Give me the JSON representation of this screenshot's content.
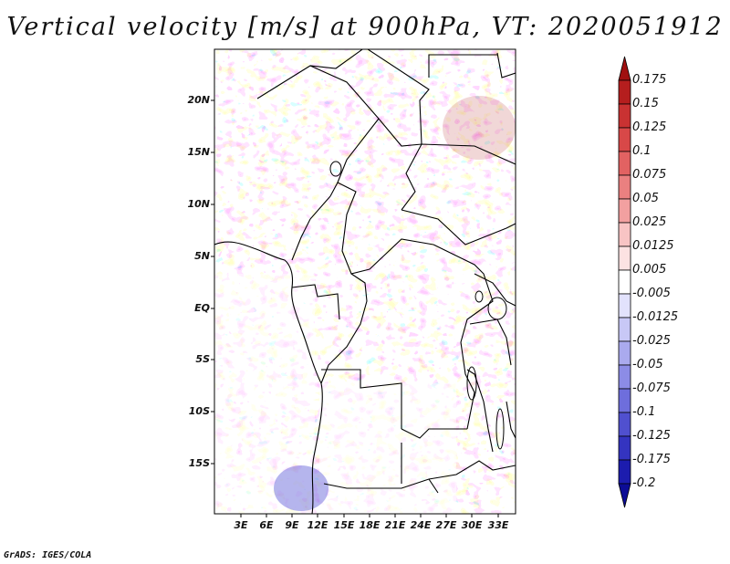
{
  "title": "Vertical velocity [m/s] at 900hPa, VT: 2020051912",
  "credit": "GrADS: IGES/COLA",
  "map": {
    "variable": "Vertical velocity",
    "units": "m/s",
    "level": "900hPa",
    "valid_time": "2020051912",
    "lat_labels": [
      "20N",
      "15N",
      "10N",
      "5N",
      "EQ",
      "5S",
      "10S",
      "15S"
    ],
    "lon_labels": [
      "3E",
      "6E",
      "9E",
      "12E",
      "15E",
      "18E",
      "21E",
      "24E",
      "27E",
      "30E",
      "33E"
    ]
  },
  "colorbar": {
    "labels": [
      "0.175",
      "0.15",
      "0.125",
      "0.1",
      "0.075",
      "0.05",
      "0.025",
      "0.0125",
      "0.005",
      "-0.005",
      "-0.0125",
      "-0.025",
      "-0.05",
      "-0.075",
      "-0.1",
      "-0.125",
      "-0.175",
      "-0.2"
    ],
    "colors": [
      "#a01010",
      "#b51e1e",
      "#c93232",
      "#d84848",
      "#e26262",
      "#ea8080",
      "#f2a0a0",
      "#f8c4c4",
      "#fce2e2",
      "#ffffff",
      "#e2e2fc",
      "#c8c8f6",
      "#aaaaee",
      "#8c8ce6",
      "#6e6edc",
      "#5050cf",
      "#3434c0",
      "#1c1cae",
      "#0c0c96"
    ]
  }
}
